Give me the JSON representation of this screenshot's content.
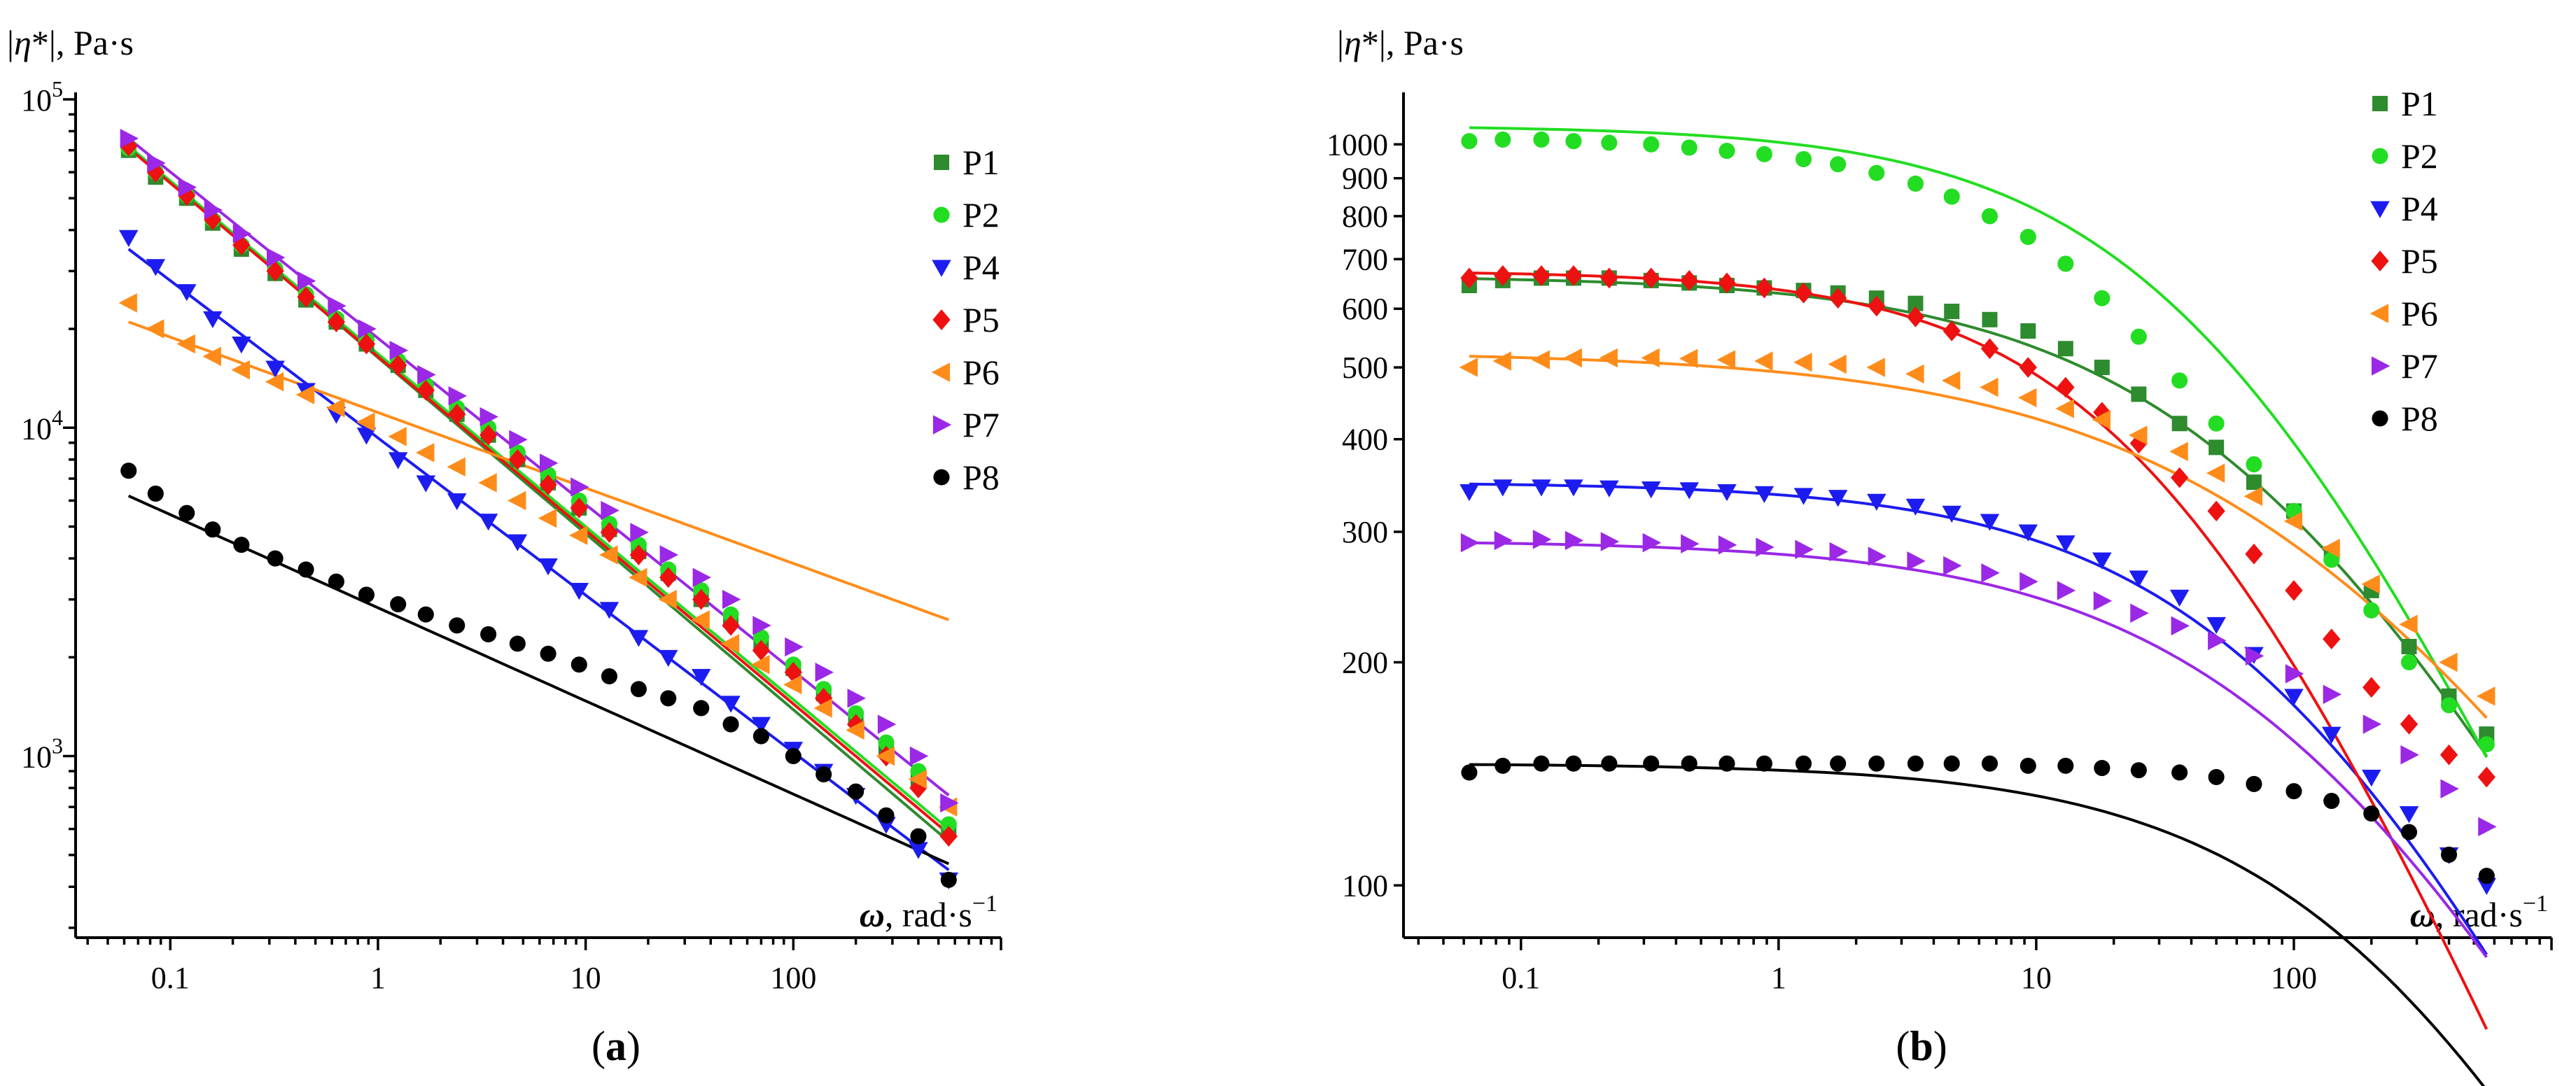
{
  "chart_data": [
    {
      "type": "scatter",
      "subplot_label": "a",
      "ylabel_prefix": "|",
      "ylabel_symbol": "η",
      "ylabel_suffix": "*|, Pa·s",
      "xlabel_symbol": "ω",
      "xlabel_rest": ", rad·s",
      "xlabel_exp": "−1",
      "xscale": "log",
      "yscale": "log",
      "xlim": [
        0.035,
        1000
      ],
      "ylim": [
        280,
        100000
      ],
      "xticks": [
        {
          "v": 0.1,
          "label": "0.1"
        },
        {
          "v": 1,
          "label": "1"
        },
        {
          "v": 10,
          "label": "10"
        },
        {
          "v": 100,
          "label": "100"
        }
      ],
      "yticks": [
        {
          "v": 1000,
          "base": "10",
          "exp": "3"
        },
        {
          "v": 10000,
          "base": "10",
          "exp": "4"
        },
        {
          "v": 100000,
          "base": "10",
          "exp": "5"
        }
      ],
      "x": [
        0.063,
        0.085,
        0.12,
        0.16,
        0.22,
        0.32,
        0.45,
        0.63,
        0.88,
        1.25,
        1.7,
        2.4,
        3.4,
        4.7,
        6.6,
        9.3,
        13,
        18,
        25,
        36,
        50,
        70,
        100,
        140,
        200,
        280,
        400,
        560
      ],
      "series": [
        {
          "name": "P1",
          "color": "#2e8b2e",
          "marker": "square",
          "fit": [
            72000,
            550
          ],
          "values": [
            70000,
            58000,
            50000,
            42000,
            35000,
            29500,
            24500,
            21000,
            18000,
            15500,
            13000,
            11000,
            9500,
            8000,
            6800,
            5700,
            4900,
            4200,
            3600,
            3000,
            2600,
            2200,
            1850,
            1550,
            1300,
            1050,
            850,
            600
          ]
        },
        {
          "name": "P2",
          "color": "#22dd22",
          "marker": "circle",
          "fit": [
            72000,
            600
          ],
          "values": [
            71000,
            60000,
            51000,
            43000,
            36000,
            30500,
            25500,
            21500,
            18500,
            16000,
            13500,
            11500,
            10000,
            8400,
            7200,
            6000,
            5100,
            4400,
            3700,
            3200,
            2700,
            2300,
            1900,
            1600,
            1350,
            1100,
            900,
            620
          ]
        },
        {
          "name": "P4",
          "color": "#1c1cf0",
          "marker": "triangle-down",
          "fit": [
            35000,
            450
          ],
          "values": [
            38000,
            31000,
            26000,
            21500,
            18000,
            15200,
            13000,
            11000,
            9500,
            8000,
            6800,
            6000,
            5200,
            4500,
            3800,
            3200,
            2800,
            2300,
            2000,
            1750,
            1450,
            1250,
            1050,
            900,
            760,
            620,
            520,
            420
          ]
        },
        {
          "name": "P5",
          "color": "#ee1111",
          "marker": "diamond",
          "fit": [
            71000,
            580
          ],
          "values": [
            72000,
            60000,
            51000,
            43000,
            36000,
            30000,
            25000,
            21000,
            18000,
            15500,
            13000,
            11000,
            9500,
            8000,
            6700,
            5700,
            4800,
            4100,
            3500,
            3000,
            2500,
            2100,
            1800,
            1500,
            1250,
            1000,
            800,
            570
          ]
        },
        {
          "name": "P6",
          "color": "#ff8c1a",
          "marker": "triangle-left",
          "fit": [
            21000,
            2600
          ],
          "values": [
            24000,
            20000,
            18000,
            16500,
            15000,
            13800,
            12600,
            11500,
            10400,
            9400,
            8400,
            7600,
            6800,
            6000,
            5300,
            4700,
            4100,
            3500,
            3000,
            2600,
            2200,
            1900,
            1650,
            1400,
            1200,
            1000,
            850,
            700
          ]
        },
        {
          "name": "P7",
          "color": "#9a28e6",
          "marker": "triangle-right",
          "fit": [
            76000,
            760
          ],
          "values": [
            76000,
            64000,
            54000,
            46000,
            39000,
            33000,
            28000,
            23500,
            20000,
            17200,
            14500,
            12500,
            10800,
            9200,
            7800,
            6600,
            5600,
            4800,
            4100,
            3500,
            3000,
            2500,
            2150,
            1800,
            1500,
            1250,
            1000,
            720
          ]
        },
        {
          "name": "P8",
          "color": "#000000",
          "marker": "circle",
          "fit": [
            6200,
            470
          ],
          "values": [
            7400,
            6300,
            5500,
            4900,
            4400,
            4000,
            3700,
            3400,
            3100,
            2900,
            2700,
            2500,
            2350,
            2200,
            2050,
            1900,
            1750,
            1600,
            1500,
            1400,
            1250,
            1150,
            1000,
            880,
            780,
            660,
            570,
            420
          ]
        }
      ]
    },
    {
      "type": "scatter",
      "subplot_label": "b",
      "ylabel_prefix": "|",
      "ylabel_symbol": "η",
      "ylabel_suffix": "*|, Pa·s",
      "xlabel_symbol": "ω",
      "xlabel_rest": ", rad·s",
      "xlabel_exp": "−1",
      "xscale": "log",
      "yscale": "log",
      "xlim": [
        0.035,
        1000
      ],
      "ylim": [
        85,
        1150
      ],
      "xticks": [
        {
          "v": 0.1,
          "label": "0.1"
        },
        {
          "v": 1,
          "label": "1"
        },
        {
          "v": 10,
          "label": "10"
        },
        {
          "v": 100,
          "label": "100"
        }
      ],
      "yticks": [
        {
          "v": 100,
          "label": "100"
        },
        {
          "v": 200,
          "label": "200"
        },
        {
          "v": 300,
          "label": "300"
        },
        {
          "v": 400,
          "label": "400"
        },
        {
          "v": 500,
          "label": "500"
        },
        {
          "v": 600,
          "label": "600"
        },
        {
          "v": 700,
          "label": "700"
        },
        {
          "v": 800,
          "label": "800"
        },
        {
          "v": 900,
          "label": "900"
        },
        {
          "v": 1000,
          "label": "1000"
        }
      ],
      "x": [
        0.063,
        0.085,
        0.12,
        0.16,
        0.22,
        0.32,
        0.45,
        0.63,
        0.88,
        1.25,
        1.7,
        2.4,
        3.4,
        4.7,
        6.6,
        9.3,
        13,
        18,
        25,
        36,
        50,
        70,
        100,
        140,
        200,
        280,
        400,
        560
      ],
      "series": [
        {
          "name": "P1",
          "color": "#2e8b2e",
          "marker": "square",
          "fit": [
            665,
            0.012,
            0.65
          ],
          "values": [
            645,
            655,
            660,
            660,
            660,
            655,
            650,
            645,
            640,
            635,
            630,
            620,
            610,
            595,
            580,
            560,
            530,
            500,
            460,
            420,
            390,
            350,
            320,
            280,
            250,
            210,
            180,
            160
          ]
        },
        {
          "name": "P2",
          "color": "#22dd22",
          "marker": "circle",
          "fit": [
            1060,
            0.02,
            0.75
          ],
          "values": [
            1010,
            1015,
            1015,
            1010,
            1005,
            1000,
            990,
            980,
            970,
            955,
            940,
            915,
            885,
            850,
            800,
            750,
            690,
            620,
            550,
            480,
            420,
            370,
            320,
            275,
            235,
            200,
            175,
            155
          ]
        },
        {
          "name": "P4",
          "color": "#1c1cf0",
          "marker": "triangle-down",
          "fit": [
            350,
            0.01,
            0.7
          ],
          "values": [
            340,
            345,
            345,
            345,
            344,
            343,
            342,
            340,
            338,
            336,
            334,
            330,
            325,
            318,
            310,
            300,
            290,
            275,
            260,
            245,
            225,
            205,
            180,
            160,
            140,
            125,
            110,
            100
          ]
        },
        {
          "name": "P5",
          "color": "#ee1111",
          "marker": "diamond",
          "fit": [
            675,
            0.03,
            0.8
          ],
          "values": [
            660,
            665,
            665,
            665,
            660,
            660,
            655,
            650,
            640,
            630,
            620,
            605,
            585,
            560,
            530,
            500,
            470,
            435,
            395,
            355,
            320,
            280,
            250,
            215,
            185,
            165,
            150,
            140
          ]
        },
        {
          "name": "P6",
          "color": "#ff8c1a",
          "marker": "triangle-left",
          "fit": [
            525,
            0.007,
            0.55
          ],
          "values": [
            500,
            510,
            512,
            515,
            515,
            515,
            514,
            512,
            510,
            508,
            505,
            500,
            490,
            480,
            470,
            455,
            440,
            425,
            405,
            385,
            360,
            335,
            310,
            285,
            255,
            225,
            200,
            180
          ]
        },
        {
          "name": "P7",
          "color": "#9a28e6",
          "marker": "triangle-right",
          "fit": [
            292,
            0.008,
            0.65
          ],
          "values": [
            290,
            292,
            293,
            292,
            291,
            290,
            289,
            288,
            286,
            284,
            282,
            278,
            274,
            270,
            264,
            257,
            250,
            242,
            233,
            224,
            214,
            204,
            193,
            181,
            165,
            150,
            135,
            120
          ]
        },
        {
          "name": "P8",
          "color": "#000000",
          "marker": "circle",
          "fit": [
            146,
            0.004,
            0.7
          ],
          "values": [
            142,
            145,
            146,
            146,
            146,
            146,
            146,
            146,
            146,
            146,
            146,
            146,
            146,
            146,
            146,
            145,
            145,
            144,
            143,
            142,
            140,
            137,
            134,
            130,
            125,
            118,
            110,
            103
          ]
        }
      ]
    }
  ]
}
